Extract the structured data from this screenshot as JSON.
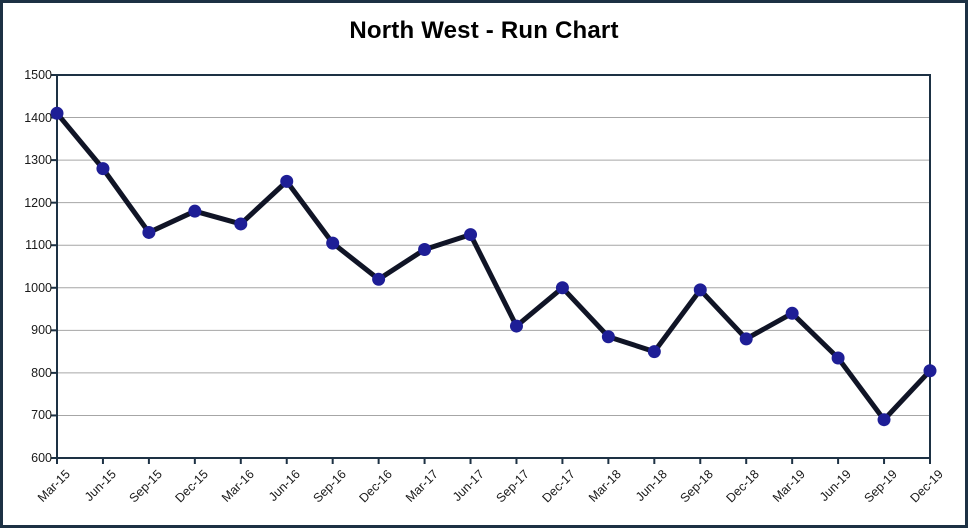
{
  "chart_data": {
    "type": "line",
    "title": "North West - Run Chart",
    "categories": [
      "Mar-15",
      "Jun-15",
      "Sep-15",
      "Dec-15",
      "Mar-16",
      "Jun-16",
      "Sep-16",
      "Dec-16",
      "Mar-17",
      "Jun-17",
      "Sep-17",
      "Dec-17",
      "Mar-18",
      "Jun-18",
      "Sep-18",
      "Dec-18",
      "Mar-19",
      "Jun-19",
      "Sep-19",
      "Dec-19"
    ],
    "values": [
      1410,
      1280,
      1130,
      1180,
      1150,
      1250,
      1105,
      1020,
      1090,
      1125,
      910,
      1000,
      885,
      850,
      995,
      880,
      940,
      835,
      690,
      805
    ],
    "yticks": [
      1500,
      1400,
      1300,
      1200,
      1100,
      1000,
      900,
      800,
      700,
      600
    ],
    "ylim": [
      600,
      1500
    ],
    "ytick_step": 100,
    "xlabel": "",
    "ylabel": "",
    "legend": "none",
    "grid": "horizontal",
    "marker": "filled-circle",
    "x_label_rotation_deg": 45
  },
  "colors": {
    "frame": "#1d3144",
    "axis": "#1d3144",
    "gridline": "#a6a6a6",
    "series_line": "#101426",
    "marker_fill": "#1e1e96",
    "tick_text": "#1a1a1a",
    "title_text": "#000000"
  }
}
